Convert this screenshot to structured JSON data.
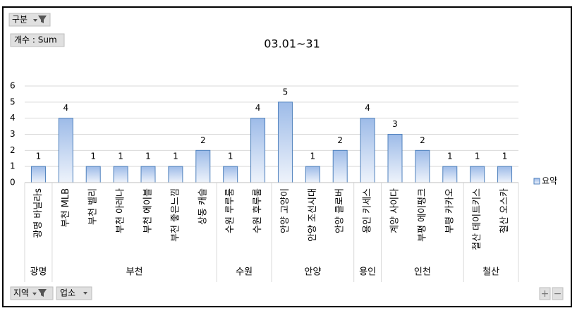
{
  "pivot": {
    "filter_button": "구분",
    "value_button": "개수 : Sum",
    "row_buttons": [
      "지역",
      "업소"
    ]
  },
  "zoom_buttons": [
    "+",
    "−"
  ],
  "chart_data": {
    "type": "bar",
    "title": "03.01~31",
    "categories": [
      "광명 바닐라s",
      "부천 MLB",
      "부천 벨리",
      "부천 아레나",
      "부천 에이블",
      "부천 좋은느낌",
      "상동 캐슬",
      "수원 루루룸",
      "수원 후루룸",
      "안양 고양이",
      "안양 조선시대",
      "안양 클로버",
      "용인 키세스",
      "계양 사이다",
      "부평 에이펑크",
      "부평 카카오",
      "철산 데이트키스",
      "철산 오스카"
    ],
    "category_groups": [
      "광명",
      "부천",
      "부천",
      "부천",
      "부천",
      "부천",
      "부천",
      "수원",
      "수원",
      "안양",
      "안양",
      "안양",
      "용인",
      "인천",
      "인천",
      "인천",
      "철산",
      "철산"
    ],
    "series": [
      {
        "name": "요약",
        "color": "#4f81bd",
        "values": [
          1,
          4,
          1,
          1,
          1,
          1,
          2,
          1,
          4,
          5,
          1,
          2,
          4,
          3,
          2,
          1,
          1,
          1
        ]
      }
    ],
    "ylim": [
      0,
      6
    ],
    "yticks": [
      0,
      1,
      2,
      3,
      4,
      5,
      6
    ],
    "grid": true,
    "legend": "right",
    "data_labels": true
  }
}
